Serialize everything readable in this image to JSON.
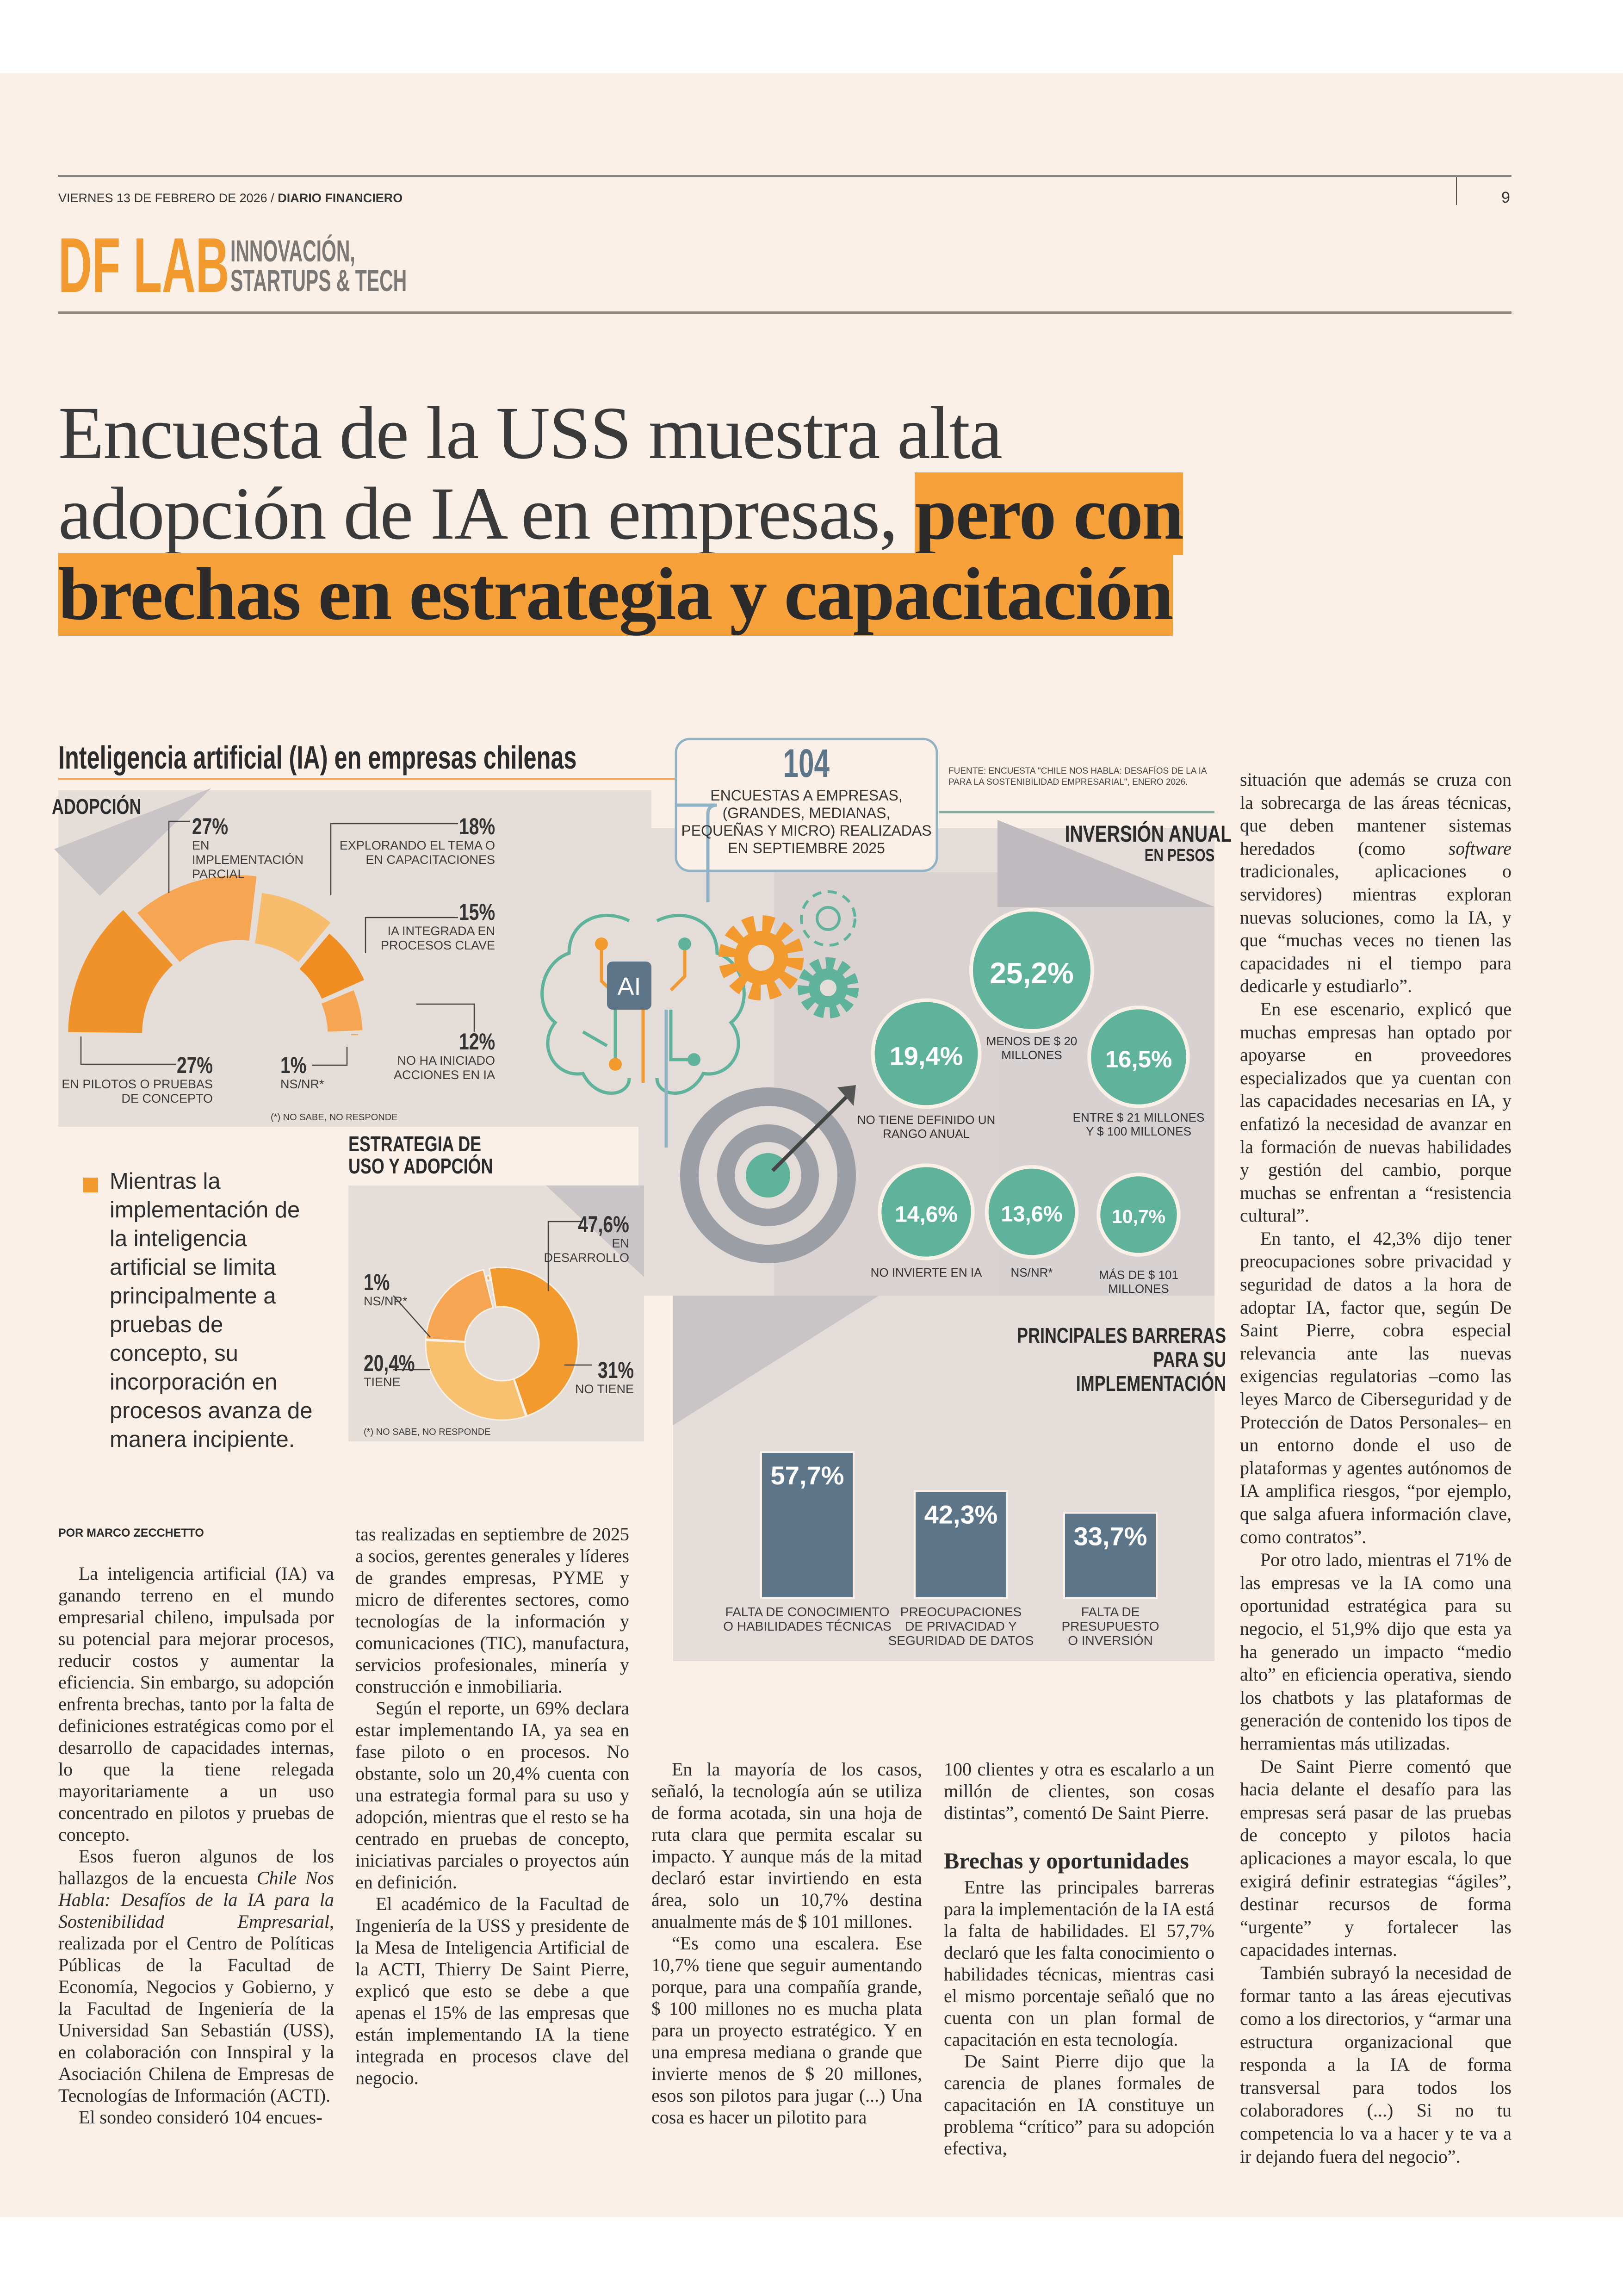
{
  "header": {
    "date": "VIERNES 13 DE FEBRERO DE 2026 /",
    "publication": "DIARIO FINANCIERO",
    "page_number": "9",
    "section_logo": "DF LAB",
    "section_line1": "INNOVACIÓN,",
    "section_line2": "STARTUPS & TECH"
  },
  "headline": {
    "line1": "Encuesta de la USS muestra alta",
    "line2_plain": "adopción de IA en empresas,",
    "line2_highlight": "pero con",
    "line3_highlight": "brechas en estrategia y capacitación"
  },
  "colors": {
    "orange": "#f39a2e",
    "teal": "#5fb39a",
    "slate": "#5d7588",
    "panel": "#e4dcd7"
  },
  "infographic": {
    "title": "Inteligencia artificial (IA) en empresas chilenas",
    "survey_count": "104",
    "survey_desc": [
      "ENCUESTAS A EMPRESAS,",
      "(GRANDES, MEDIANAS,",
      "PEQUEÑAS Y MICRO) REALIZADAS",
      "EN SEPTIEMBRE 2025"
    ],
    "source": [
      "FUENTE: ENCUESTA \"CHILE NOS HABLA: DESAFÍOS DE LA IA",
      "PARA LA SOSTENIBILIDAD EMPRESARIAL\", ENERO 2026."
    ],
    "ai_chip_label": "AI",
    "nsnr_note": "(*) NO SABE, NO RESPONDE"
  },
  "chart_data": [
    {
      "type": "pie",
      "title": "ADOPCIÓN",
      "categories": [
        "EN PILOTOS O PRUEBAS DE CONCEPTO",
        "EN IMPLEMENTACIÓN PARCIAL",
        "EXPLORANDO EL TEMA O EN CAPACITACIONES",
        "IA INTEGRADA EN PROCESOS CLAVE",
        "NO HA INICIADO ACCIONES EN IA",
        "NS/NR*"
      ],
      "values": [
        27,
        27,
        18,
        15,
        12,
        1
      ],
      "labels": [
        "27%",
        "27%",
        "18%",
        "15%",
        "12%",
        "1%"
      ],
      "colors": [
        "#f0922a",
        "#f6a552",
        "#f8bd6c",
        "#ef8d20",
        "#f6a552",
        "#f6a552"
      ]
    },
    {
      "type": "pie",
      "title": "ESTRATEGIA DE USO Y ADOPCIÓN",
      "categories": [
        "EN DESARROLLO",
        "NO TIENE",
        "TIENE",
        "NS/NR*"
      ],
      "values": [
        47.6,
        31,
        20.4,
        1
      ],
      "labels": [
        "47,6%",
        "31%",
        "20,4%",
        "1%"
      ],
      "colors": [
        "#f39a2e",
        "#f8c170",
        "#f6a552",
        "#f6a552"
      ]
    },
    {
      "type": "bubble",
      "title": "INVERSIÓN ANUAL",
      "subtitle": "EN PESOS",
      "categories": [
        "MENOS DE $ 20 MILLONES",
        "NO TIENE DEFINIDO UN RANGO ANUAL",
        "ENTRE $ 21 MILLONES Y $ 100 MILLONES",
        "NO INVIERTE EN IA",
        "NS/NR*",
        "MÁS DE $ 101 MILLONES"
      ],
      "values": [
        25.2,
        19.4,
        16.5,
        14.6,
        13.6,
        10.7
      ],
      "labels": [
        "25,2%",
        "19,4%",
        "16,5%",
        "14,6%",
        "13,6%",
        "10,7%"
      ]
    },
    {
      "type": "bar",
      "title": "PRINCIPALES BARRERAS PARA SU IMPLEMENTACIÓN",
      "categories": [
        "FALTA DE CONOCIMIENTO O HABILIDADES TÉCNICAS",
        "PREOCUPACIONES DE PRIVACIDAD Y SEGURIDAD DE DATOS",
        "FALTA DE PRESUPUESTO O INVERSIÓN"
      ],
      "category_lines": [
        [
          "FALTA DE CONOCIMIENTO",
          "O HABILIDADES TÉCNICAS"
        ],
        [
          "PREOCUPACIONES",
          "DE PRIVACIDAD Y",
          "SEGURIDAD DE DATOS"
        ],
        [
          "FALTA DE",
          "PRESUPUESTO",
          "O INVERSIÓN"
        ]
      ],
      "values": [
        57.7,
        42.3,
        33.7
      ],
      "labels": [
        "57,7%",
        "42,3%",
        "33,7%"
      ],
      "ylim": [
        0,
        60
      ]
    }
  ],
  "pullquote": "Mientras la implementación de la inteligencia artificial se limita principalmente a pruebas de concepto, su incorporación en procesos avanza de manera incipiente.",
  "article": {
    "byline": "POR MARCO ZECCHETTO",
    "col1": [
      "La inteligencia artificial (IA) va ganando terreno en el mundo empresarial chileno, impulsada por su potencial para mejorar procesos, reducir costos y aumentar la eficiencia. Sin embargo, su adopción enfrenta brechas, tanto por la falta de definiciones estratégicas como por el desarrollo de capacidades internas, lo que la tiene relegada mayoritariamente a un uso concentrado en pilotos y pruebas de concepto.",
      {
        "pre": "Esos fueron algunos de los hallazgos de la encuesta ",
        "italic": "Chile Nos Habla: Desafíos de la IA para la Sostenibilidad Empresarial",
        "post": ", realizada por el Centro de Políticas Públicas de la Facultad de Economía, Negocios y Gobierno, y la Facultad de Ingeniería de la Universidad San Sebastián (USS), en colaboración con Innspiral y la Asociación Chilena de Empresas de Tecnologías de Información (ACTI)."
      },
      "El sondeo consideró 104 encues-"
    ],
    "col2": [
      "tas realizadas en septiembre de 2025 a socios, gerentes generales y líderes de grandes empresas, PYME y micro de diferentes sectores, como tecnologías de la información y comunicaciones (TIC), manufactura, servicios profesionales, minería y construcción e inmobiliaria.",
      "Según el reporte, un 69% declara estar implementando IA, ya sea en fase piloto o en procesos. No obstante, solo un 20,4% cuenta con una estrategia formal para su uso y adopción, mientras que el resto se ha centrado en pruebas de concepto, iniciativas parciales o proyectos aún en definición.",
      "El académico de la Facultad de Ingeniería de la USS y presidente de la Mesa de Inteligencia Artificial de la ACTI, Thierry De Saint Pierre, explicó que esto se debe a que apenas el 15% de las empresas que están implementando IA la tiene integrada en procesos clave del negocio."
    ],
    "col3": [
      "En la mayoría de los casos, señaló, la tecnología aún se utiliza de forma acotada, sin una hoja de ruta clara que permita escalar su impacto. Y aunque más de la mitad declaró estar invirtiendo en esta área, solo un 10,7% destina anualmente más de $ 101 millones.",
      "“Es como una escalera. Ese 10,7% tiene que seguir aumentando porque, para una compañía grande, $ 100 millones no es mucha plata para un proyecto estratégico. Y en una empresa mediana o grande que invierte menos de $ 20 millones, esos son pilotos para jugar (...) Una cosa es hacer un pilotito para"
    ],
    "col4": [
      "100 clientes y otra es escalarlo a un millón de clientes, son cosas distintas”, comentó De Saint Pierre.",
      "Entre las principales barreras para la implementación de la IA está la falta de habilidades. El 57,7% declaró que les falta conocimiento o habilidades técnicas, mientras casi el mismo porcentaje señaló que no cuenta con un plan formal de capacitación en esta tecnología.",
      "De Saint Pierre dijo que la carencia de planes formales de capacitación en IA constituye un problema “crítico” para su adopción efectiva,"
    ],
    "subhead": "Brechas y oportunidades",
    "col5": [
      {
        "pre": "situación que además se cruza con la sobrecarga de las áreas técnicas, que deben mantener sistemas heredados (como ",
        "italic": "software",
        "post": " tradicionales, aplicaciones o servidores) mientras exploran nuevas soluciones, como la IA, y que “muchas veces no tienen las capacidades ni el tiempo para dedicarle y estudiarlo”."
      },
      "En ese escenario, explicó que muchas empresas han optado por apoyarse en proveedores especializados que ya cuentan con las capacidades necesarias en IA, y enfatizó la necesidad de avanzar en la formación de nuevas habilidades y gestión del cambio, porque muchas se enfrentan a “resistencia cultural”.",
      "En tanto, el 42,3% dijo tener preocupaciones sobre privacidad y seguridad de datos a la hora de adoptar IA, factor que, según De Saint Pierre, cobra especial relevancia ante las nuevas exigencias regulatorias –como las leyes Marco de Ciberseguridad y de Protección de Datos Personales– en un entorno donde el uso de plataformas y agentes autónomos de IA amplifica riesgos, “por ejemplo, que salga afuera información clave, como contratos”.",
      "Por otro lado, mientras el 71% de las empresas ve la IA como una oportunidad estratégica para su negocio, el 51,9% dijo que esta ya ha generado un impacto “medio alto” en eficiencia operativa, siendo los chatbots y las plataformas de generación de contenido los tipos de herramientas más utilizadas.",
      "De Saint Pierre comentó que hacia delante el desafío para las empresas será pasar de las pruebas de concepto y pilotos hacia aplicaciones a mayor escala, lo que exigirá definir estrategias “ágiles”, destinar recursos de forma “urgente” y fortalecer las capacidades internas.",
      "También subrayó la necesidad de formar tanto a las áreas ejecutivas como a los directorios, y “armar una estructura organizacional que responda a la IA de forma transversal para todos los colaboradores (...) Si no tu competencia lo va a hacer y te va a ir dejando fuera del negocio”."
    ]
  }
}
